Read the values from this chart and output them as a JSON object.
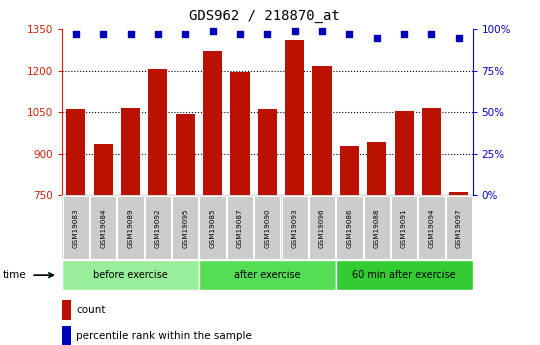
{
  "title": "GDS962 / 218870_at",
  "samples": [
    "GSM19083",
    "GSM19084",
    "GSM19089",
    "GSM19092",
    "GSM19095",
    "GSM19085",
    "GSM19087",
    "GSM19090",
    "GSM19093",
    "GSM19096",
    "GSM19086",
    "GSM19088",
    "GSM19091",
    "GSM19094",
    "GSM19097"
  ],
  "bar_values": [
    1063,
    933,
    1065,
    1208,
    1045,
    1270,
    1196,
    1062,
    1310,
    1218,
    928,
    940,
    1055,
    1065,
    762
  ],
  "percentile_values": [
    97,
    97,
    97,
    97,
    97,
    99,
    97,
    97,
    99,
    99,
    97,
    95,
    97,
    97,
    95
  ],
  "groups": [
    {
      "label": "before exercise",
      "start": 0,
      "end": 5,
      "color": "#99ee99"
    },
    {
      "label": "after exercise",
      "start": 5,
      "end": 10,
      "color": "#55dd55"
    },
    {
      "label": "60 min after exercise",
      "start": 10,
      "end": 15,
      "color": "#33cc33"
    }
  ],
  "bar_color": "#bb1100",
  "dot_color": "#0000bb",
  "ymin": 750,
  "ymax": 1350,
  "yticks": [
    750,
    900,
    1050,
    1200,
    1350
  ],
  "ytick_labels": [
    "750",
    "900",
    "1050",
    "1200",
    "1350"
  ],
  "right_yticks": [
    0,
    25,
    50,
    75,
    100
  ],
  "right_yticklabels": [
    "0%",
    "25%",
    "50%",
    "75%",
    "100%"
  ],
  "tick_label_color": "#cc2200",
  "right_axis_color": "#0000cc",
  "plot_bg": "#ffffff",
  "grid_color": "#000000"
}
